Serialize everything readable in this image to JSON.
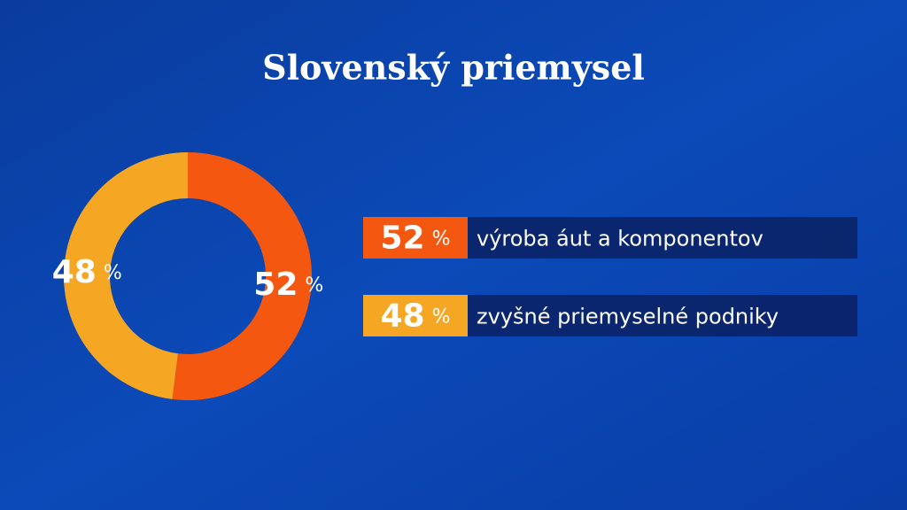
{
  "chart_data": {
    "type": "pie",
    "title": "Slovenský priemysel",
    "categories": [
      "výroba áut a komponentov",
      "zvyšné priemyselné podniky"
    ],
    "values": [
      52,
      48
    ],
    "unit": "%",
    "colors": [
      "#f4570f",
      "#f5a623"
    ]
  }
}
